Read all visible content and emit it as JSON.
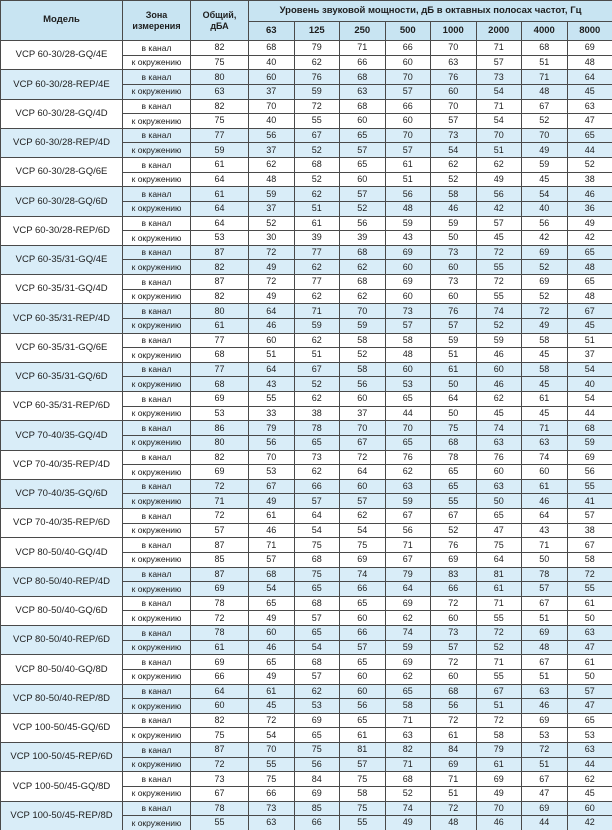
{
  "colors": {
    "header_bg": "#c8e4f2",
    "shaded_row_bg": "#d9edf8",
    "border": "#4a4a4a",
    "text": "#1e1e1e"
  },
  "table": {
    "columns": {
      "model": "Модель",
      "zone": "Зона\nизмерения",
      "total": "Общий,\nдБА",
      "band_group": "Уровень звуковой мощности, дБ в октавных полосах частот, Гц",
      "frequencies": [
        "63",
        "125",
        "250",
        "500",
        "1000",
        "2000",
        "4000",
        "8000"
      ]
    },
    "zone_labels": [
      "в канал",
      "к окружению"
    ],
    "rows": [
      {
        "model": "VCP 60-30/28-GQ/4E",
        "shaded": false,
        "in_duct": [
          82,
          68,
          79,
          71,
          66,
          70,
          71,
          68,
          69
        ],
        "to_surroundings": [
          75,
          40,
          62,
          66,
          60,
          63,
          57,
          51,
          48
        ]
      },
      {
        "model": "VCP 60-30/28-REP/4E",
        "shaded": true,
        "in_duct": [
          80,
          60,
          76,
          68,
          70,
          76,
          73,
          71,
          64
        ],
        "to_surroundings": [
          63,
          37,
          59,
          63,
          57,
          60,
          54,
          48,
          45
        ]
      },
      {
        "model": "VCP 60-30/28-GQ/4D",
        "shaded": false,
        "in_duct": [
          82,
          70,
          72,
          68,
          66,
          70,
          71,
          67,
          63
        ],
        "to_surroundings": [
          75,
          40,
          55,
          60,
          60,
          57,
          54,
          52,
          47
        ]
      },
      {
        "model": "VCP 60-30/28-REP/4D",
        "shaded": true,
        "in_duct": [
          77,
          56,
          67,
          65,
          70,
          73,
          70,
          70,
          65
        ],
        "to_surroundings": [
          59,
          37,
          52,
          57,
          57,
          54,
          51,
          49,
          44
        ]
      },
      {
        "model": "VCP 60-30/28-GQ/6E",
        "shaded": false,
        "in_duct": [
          61,
          62,
          68,
          65,
          61,
          62,
          62,
          59,
          52
        ],
        "to_surroundings": [
          64,
          48,
          52,
          60,
          51,
          52,
          49,
          45,
          38
        ]
      },
      {
        "model": "VCP 60-30/28-GQ/6D",
        "shaded": true,
        "in_duct": [
          61,
          59,
          62,
          57,
          56,
          58,
          56,
          54,
          46
        ],
        "to_surroundings": [
          64,
          37,
          51,
          52,
          48,
          46,
          42,
          40,
          36
        ]
      },
      {
        "model": "VCP 60-30/28-REP/6D",
        "shaded": false,
        "in_duct": [
          64,
          52,
          61,
          56,
          59,
          59,
          57,
          56,
          49
        ],
        "to_surroundings": [
          53,
          30,
          39,
          39,
          43,
          50,
          45,
          42,
          42
        ]
      },
      {
        "model": "VCP 60-35/31-GQ/4E",
        "shaded": true,
        "in_duct": [
          87,
          72,
          77,
          68,
          69,
          73,
          72,
          69,
          65
        ],
        "to_surroundings": [
          82,
          49,
          62,
          62,
          60,
          60,
          55,
          52,
          48
        ]
      },
      {
        "model": "VCP 60-35/31-GQ/4D",
        "shaded": false,
        "in_duct": [
          87,
          72,
          77,
          68,
          69,
          73,
          72,
          69,
          65
        ],
        "to_surroundings": [
          82,
          49,
          62,
          62,
          60,
          60,
          55,
          52,
          48
        ]
      },
      {
        "model": "VCP 60-35/31-REP/4D",
        "shaded": true,
        "in_duct": [
          80,
          64,
          71,
          70,
          73,
          76,
          74,
          72,
          67
        ],
        "to_surroundings": [
          61,
          46,
          59,
          59,
          57,
          57,
          52,
          49,
          45
        ]
      },
      {
        "model": "VCP 60-35/31-GQ/6E",
        "shaded": false,
        "in_duct": [
          77,
          60,
          62,
          58,
          58,
          59,
          59,
          58,
          51
        ],
        "to_surroundings": [
          68,
          51,
          51,
          52,
          48,
          51,
          46,
          45,
          37
        ]
      },
      {
        "model": "VCP 60-35/31-GQ/6D",
        "shaded": true,
        "in_duct": [
          77,
          64,
          67,
          58,
          60,
          61,
          60,
          58,
          54
        ],
        "to_surroundings": [
          68,
          43,
          52,
          56,
          53,
          50,
          46,
          45,
          40
        ]
      },
      {
        "model": "VCP 60-35/31-REP/6D",
        "shaded": false,
        "in_duct": [
          69,
          55,
          62,
          60,
          65,
          64,
          62,
          61,
          54
        ],
        "to_surroundings": [
          53,
          33,
          38,
          37,
          44,
          50,
          45,
          45,
          44
        ]
      },
      {
        "model": "VCP 70-40/35-GQ/4D",
        "shaded": true,
        "in_duct": [
          86,
          79,
          78,
          70,
          70,
          75,
          74,
          71,
          68
        ],
        "to_surroundings": [
          80,
          56,
          65,
          67,
          65,
          68,
          63,
          63,
          59
        ]
      },
      {
        "model": "VCP 70-40/35-REP/4D",
        "shaded": false,
        "in_duct": [
          82,
          70,
          73,
          72,
          76,
          78,
          76,
          74,
          69
        ],
        "to_surroundings": [
          69,
          53,
          62,
          64,
          62,
          65,
          60,
          60,
          56
        ]
      },
      {
        "model": "VCP 70-40/35-GQ/6D",
        "shaded": true,
        "in_duct": [
          72,
          67,
          66,
          60,
          63,
          65,
          63,
          61,
          55
        ],
        "to_surroundings": [
          71,
          49,
          57,
          57,
          59,
          55,
          50,
          46,
          41
        ]
      },
      {
        "model": "VCP 70-40/35-REP/6D",
        "shaded": false,
        "in_duct": [
          72,
          61,
          64,
          62,
          67,
          67,
          65,
          64,
          57
        ],
        "to_surroundings": [
          57,
          46,
          54,
          54,
          56,
          52,
          47,
          43,
          38
        ]
      },
      {
        "model": "VCP 80-50/40-GQ/4D",
        "shaded": false,
        "in_duct": [
          87,
          71,
          75,
          75,
          71,
          76,
          75,
          71,
          67
        ],
        "to_surroundings": [
          85,
          57,
          68,
          69,
          67,
          69,
          64,
          50,
          58
        ]
      },
      {
        "model": "VCP 80-50/40-REP/4D",
        "shaded": true,
        "in_duct": [
          87,
          68,
          75,
          74,
          79,
          83,
          81,
          78,
          72
        ],
        "to_surroundings": [
          69,
          54,
          65,
          66,
          64,
          66,
          61,
          57,
          55
        ]
      },
      {
        "model": "VCP 80-50/40-GQ/6D",
        "shaded": false,
        "in_duct": [
          78,
          65,
          68,
          65,
          69,
          72,
          71,
          67,
          61
        ],
        "to_surroundings": [
          72,
          49,
          57,
          60,
          62,
          60,
          55,
          51,
          50
        ]
      },
      {
        "model": "VCP 80-50/40-REP/6D",
        "shaded": true,
        "in_duct": [
          78,
          60,
          65,
          66,
          74,
          73,
          72,
          69,
          63
        ],
        "to_surroundings": [
          61,
          46,
          54,
          57,
          59,
          57,
          52,
          48,
          47
        ]
      },
      {
        "model": "VCP 80-50/40-GQ/8D",
        "shaded": false,
        "in_duct": [
          69,
          65,
          68,
          65,
          69,
          72,
          71,
          67,
          61
        ],
        "to_surroundings": [
          66,
          49,
          57,
          60,
          62,
          60,
          55,
          51,
          50
        ]
      },
      {
        "model": "VCP 80-50/40-REP/8D",
        "shaded": true,
        "in_duct": [
          64,
          61,
          62,
          60,
          65,
          68,
          67,
          63,
          57
        ],
        "to_surroundings": [
          60,
          45,
          53,
          56,
          58,
          56,
          51,
          46,
          47
        ]
      },
      {
        "model": "VCP 100-50/45-GQ/6D",
        "shaded": false,
        "in_duct": [
          82,
          72,
          69,
          65,
          71,
          72,
          72,
          69,
          65
        ],
        "to_surroundings": [
          75,
          54,
          65,
          61,
          63,
          61,
          58,
          53,
          53
        ]
      },
      {
        "model": "VCP 100-50/45-REP/6D",
        "shaded": true,
        "in_duct": [
          87,
          70,
          75,
          81,
          82,
          84,
          79,
          72,
          63
        ],
        "to_surroundings": [
          72,
          55,
          56,
          57,
          71,
          69,
          61,
          51,
          44
        ]
      },
      {
        "model": "VCP 100-50/45-GQ/8D",
        "shaded": false,
        "in_duct": [
          73,
          75,
          84,
          75,
          68,
          71,
          69,
          67,
          62
        ],
        "to_surroundings": [
          67,
          66,
          69,
          58,
          52,
          51,
          49,
          47,
          45
        ]
      },
      {
        "model": "VCP 100-50/45-REP/8D",
        "shaded": true,
        "in_duct": [
          78,
          73,
          85,
          75,
          74,
          72,
          70,
          69,
          60
        ],
        "to_surroundings": [
          55,
          63,
          66,
          55,
          49,
          48,
          46,
          44,
          42
        ]
      }
    ]
  }
}
